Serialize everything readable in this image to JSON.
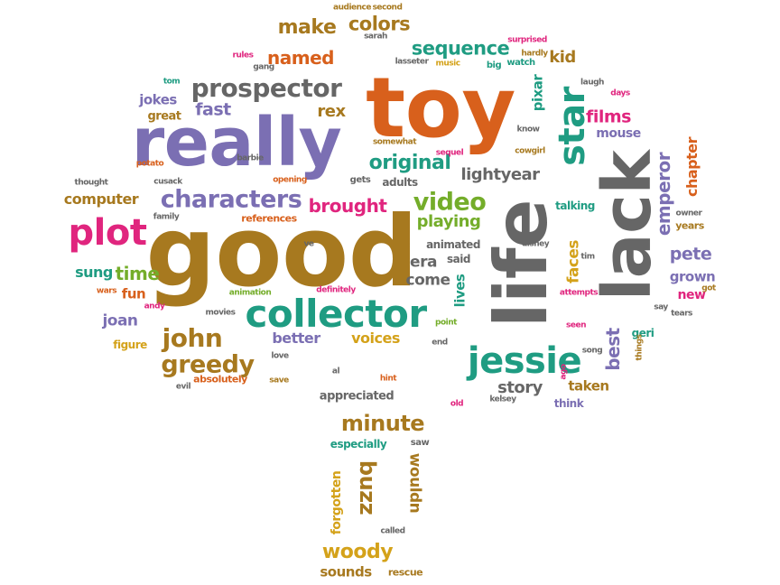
{
  "palette": {
    "purple": "#7b6fb3",
    "orange": "#d8601c",
    "gray": "#666666",
    "green": "#1f9c82",
    "brown": "#a7791f",
    "mustard": "#d4a21a",
    "pink": "#e0257e",
    "lime": "#74ad2a"
  },
  "words": [
    {
      "text": "toy",
      "color": "orange"
    },
    {
      "text": "good",
      "color": "brown"
    },
    {
      "text": "really",
      "color": "purple"
    },
    {
      "text": "life",
      "color": "gray"
    },
    {
      "text": "lack",
      "color": "gray"
    },
    {
      "text": "collector",
      "color": "green"
    },
    {
      "text": "jessie",
      "color": "green"
    },
    {
      "text": "star",
      "color": "green"
    },
    {
      "text": "plot",
      "color": "pink"
    },
    {
      "text": "prospector",
      "color": "gray"
    },
    {
      "text": "characters",
      "color": "purple"
    },
    {
      "text": "john",
      "color": "brown"
    },
    {
      "text": "greedy",
      "color": "brown"
    },
    {
      "text": "minute",
      "color": "brown"
    },
    {
      "text": "woody",
      "color": "mustard"
    },
    {
      "text": "buzz",
      "color": "brown"
    },
    {
      "text": "video",
      "color": "lime"
    },
    {
      "text": "original",
      "color": "green"
    },
    {
      "text": "sequence",
      "color": "green"
    },
    {
      "text": "make",
      "color": "brown"
    },
    {
      "text": "colors",
      "color": "brown"
    },
    {
      "text": "named",
      "color": "orange"
    },
    {
      "text": "emperor",
      "color": "purple"
    },
    {
      "text": "lightyear",
      "color": "gray"
    },
    {
      "text": "story",
      "color": "gray"
    },
    {
      "text": "films",
      "color": "pink"
    },
    {
      "text": "brought",
      "color": "pink"
    },
    {
      "text": "time",
      "color": "lime"
    },
    {
      "text": "sung",
      "color": "green"
    },
    {
      "text": "pete",
      "color": "purple"
    },
    {
      "text": "fast",
      "color": "purple"
    },
    {
      "text": "rex",
      "color": "brown"
    },
    {
      "text": "playing",
      "color": "lime"
    },
    {
      "text": "computer",
      "color": "brown"
    },
    {
      "text": "era",
      "color": "gray"
    },
    {
      "text": "come",
      "color": "gray"
    },
    {
      "text": "joan",
      "color": "purple"
    },
    {
      "text": "better",
      "color": "purple"
    },
    {
      "text": "voices",
      "color": "mustard"
    },
    {
      "text": "best",
      "color": "purple"
    },
    {
      "text": "taken",
      "color": "brown"
    },
    {
      "text": "grown",
      "color": "purple"
    },
    {
      "text": "faces",
      "color": "mustard"
    },
    {
      "text": "chapter",
      "color": "orange"
    },
    {
      "text": "kid",
      "color": "brown"
    },
    {
      "text": "pixar",
      "color": "green"
    },
    {
      "text": "mouse",
      "color": "purple"
    },
    {
      "text": "wouldn",
      "color": "brown"
    },
    {
      "text": "forgotten",
      "color": "mustard"
    },
    {
      "text": "sounds",
      "color": "brown"
    },
    {
      "text": "new",
      "color": "pink"
    },
    {
      "text": "fun",
      "color": "orange"
    },
    {
      "text": "jokes",
      "color": "purple"
    },
    {
      "text": "great",
      "color": "brown"
    },
    {
      "text": "references",
      "color": "orange"
    },
    {
      "text": "appreciated",
      "color": "gray"
    },
    {
      "text": "especially",
      "color": "green"
    },
    {
      "text": "absolutely",
      "color": "orange"
    },
    {
      "text": "lives",
      "color": "green"
    },
    {
      "text": "adults",
      "color": "gray"
    },
    {
      "text": "animated",
      "color": "gray"
    },
    {
      "text": "said",
      "color": "gray"
    },
    {
      "text": "geri",
      "color": "green"
    },
    {
      "text": "years",
      "color": "brown"
    },
    {
      "text": "talking",
      "color": "green"
    },
    {
      "text": "think",
      "color": "purple"
    },
    {
      "text": "figure",
      "color": "mustard"
    },
    {
      "text": "rescue",
      "color": "brown"
    },
    {
      "text": "gets",
      "color": "gray"
    },
    {
      "text": "family",
      "color": "gray"
    },
    {
      "text": "cusack",
      "color": "gray"
    },
    {
      "text": "thought",
      "color": "gray"
    },
    {
      "text": "potato",
      "color": "orange"
    },
    {
      "text": "barbie",
      "color": "gray"
    },
    {
      "text": "opening",
      "color": "orange"
    },
    {
      "text": "somewhat",
      "color": "brown"
    },
    {
      "text": "sequel",
      "color": "pink"
    },
    {
      "text": "know",
      "color": "gray"
    },
    {
      "text": "cowgirl",
      "color": "brown"
    },
    {
      "text": "days",
      "color": "pink"
    },
    {
      "text": "laugh",
      "color": "gray"
    },
    {
      "text": "owner",
      "color": "gray"
    },
    {
      "text": "disney",
      "color": "gray"
    },
    {
      "text": "tim",
      "color": "gray"
    },
    {
      "text": "attempts",
      "color": "pink"
    },
    {
      "text": "say",
      "color": "gray"
    },
    {
      "text": "tears",
      "color": "gray"
    },
    {
      "text": "got",
      "color": "brown"
    },
    {
      "text": "seen",
      "color": "pink"
    },
    {
      "text": "song",
      "color": "gray"
    },
    {
      "text": "things",
      "color": "brown"
    },
    {
      "text": "ago",
      "color": "pink"
    },
    {
      "text": "kelsey",
      "color": "gray"
    },
    {
      "text": "hint",
      "color": "orange"
    },
    {
      "text": "old",
      "color": "pink"
    },
    {
      "text": "end",
      "color": "gray"
    },
    {
      "text": "point",
      "color": "lime"
    },
    {
      "text": "saw",
      "color": "gray"
    },
    {
      "text": "called",
      "color": "gray"
    },
    {
      "text": "al",
      "color": "gray"
    },
    {
      "text": "save",
      "color": "brown"
    },
    {
      "text": "love",
      "color": "gray"
    },
    {
      "text": "evil",
      "color": "gray"
    },
    {
      "text": "movies",
      "color": "gray"
    },
    {
      "text": "animation",
      "color": "lime"
    },
    {
      "text": "definitely",
      "color": "pink"
    },
    {
      "text": "ve",
      "color": "gray"
    },
    {
      "text": "wars",
      "color": "orange"
    },
    {
      "text": "andy",
      "color": "pink"
    },
    {
      "text": "rules",
      "color": "pink"
    },
    {
      "text": "gang",
      "color": "gray"
    },
    {
      "text": "tom",
      "color": "green"
    },
    {
      "text": "audience",
      "color": "brown"
    },
    {
      "text": "second",
      "color": "brown"
    },
    {
      "text": "sarah",
      "color": "gray"
    },
    {
      "text": "lasseter",
      "color": "gray"
    },
    {
      "text": "music",
      "color": "mustard"
    },
    {
      "text": "big",
      "color": "green"
    },
    {
      "text": "watch",
      "color": "green"
    },
    {
      "text": "surprised",
      "color": "pink"
    },
    {
      "text": "hardly",
      "color": "brown"
    }
  ]
}
